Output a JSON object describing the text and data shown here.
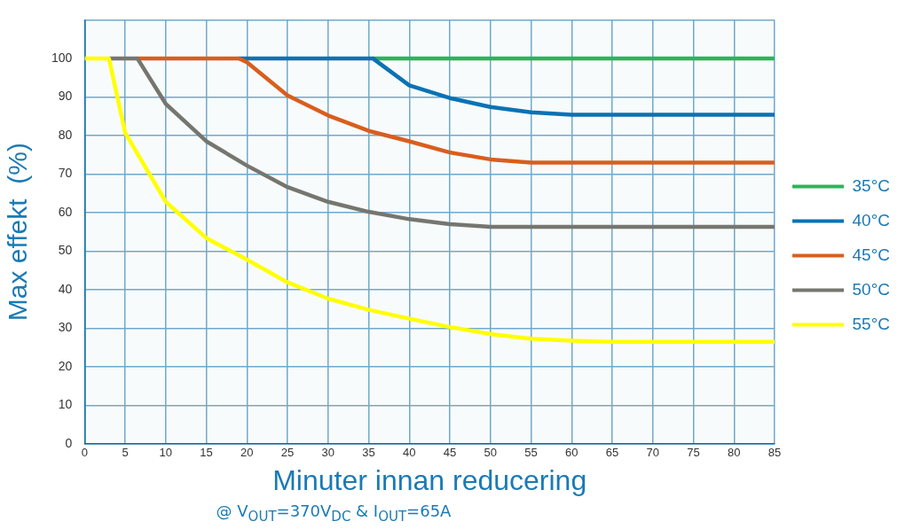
{
  "chart_data": {
    "type": "line",
    "xlabel": "Minuter innan reducering",
    "ylabel": "Max effekt  (%)",
    "annotations": [
      "@ V$_{OUT}$=370V$_{DC}$ & I$_{OUT}$=65A"
    ],
    "xlim": [
      0,
      85
    ],
    "xticks": [
      0,
      5,
      10,
      15,
      20,
      25,
      30,
      35,
      40,
      45,
      50,
      55,
      60,
      65,
      70,
      75,
      80,
      85
    ],
    "ylim": [
      0,
      110
    ],
    "yticks": [
      0,
      10,
      20,
      30,
      40,
      50,
      60,
      70,
      80,
      90,
      100,
      {
        "value": 110,
        "label": null
      }
    ],
    "grid": true,
    "legend": "right",
    "marker": "none",
    "line_style": "solid",
    "series": [
      {
        "name": "35°C",
        "color": "#2bb45a",
        "x": [
          35.5,
          85
        ],
        "values": [
          100,
          100
        ]
      },
      {
        "name": "40°C",
        "color": "#0a72b4",
        "x": [
          19,
          35.5,
          40,
          45,
          50,
          55,
          60,
          85
        ],
        "values": [
          100,
          100,
          93,
          89.7,
          87.4,
          86,
          85.4,
          85.4
        ]
      },
      {
        "name": "45°C",
        "color": "#d95e1e",
        "x": [
          6.5,
          19,
          20,
          25,
          30,
          35,
          40,
          45,
          50,
          55,
          85
        ],
        "values": [
          100,
          100,
          99,
          90.4,
          85.2,
          81.2,
          78.5,
          75.6,
          73.8,
          73,
          73
        ]
      },
      {
        "name": "50°C",
        "color": "#767670",
        "x": [
          3,
          6.5,
          10,
          15,
          20,
          25,
          30,
          35,
          40,
          45,
          50,
          52.5,
          85
        ],
        "values": [
          100,
          100,
          88.2,
          78.5,
          72.2,
          66.6,
          62.8,
          60.2,
          58.3,
          57,
          56.3,
          56.3,
          56.3
        ]
      },
      {
        "name": "55°C",
        "color": "#ffff00",
        "x": [
          0,
          3,
          5,
          10,
          15,
          20,
          25,
          30,
          35,
          40,
          45,
          50,
          55,
          60,
          65,
          85
        ],
        "values": [
          100,
          100,
          80.7,
          62.8,
          53.4,
          47.8,
          41.9,
          37.7,
          34.8,
          32.5,
          30.3,
          28.5,
          27.3,
          26.8,
          26.5,
          26.5
        ]
      }
    ]
  }
}
